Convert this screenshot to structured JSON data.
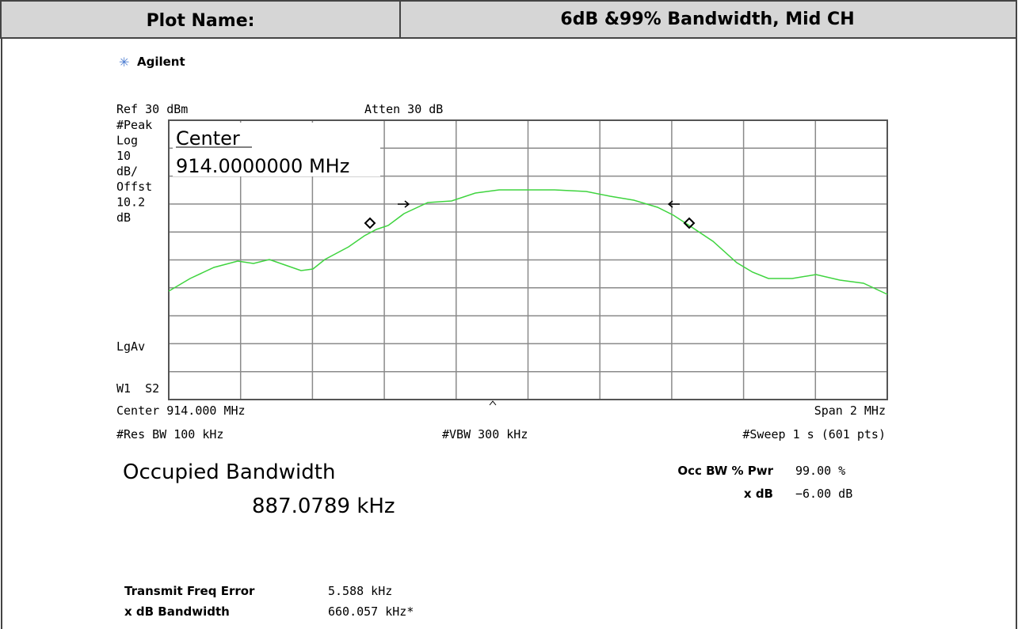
{
  "header": {
    "label": "Plot Name:",
    "value": "6dB &99% Bandwidth, Mid CH"
  },
  "plot": {
    "brand": "Agilent",
    "ref": "Ref 30 dBm",
    "atten": "Atten 30 dB",
    "left_labels": [
      "#Peak",
      "Log",
      "10",
      "dB/",
      "Offst",
      "10.2",
      "dB"
    ],
    "avg_label": "LgAv",
    "trace_label": "W1  S2",
    "marker_label": "Center",
    "marker_value": "914.0000000 MHz",
    "center": "Center 914.000 MHz",
    "span": "Span 2 MHz",
    "res_bw": "#Res BW 100 kHz",
    "vbw": "#VBW 300 kHz",
    "sweep": "#Sweep 1 s (601 pts)"
  },
  "results": {
    "title": "Occupied Bandwidth",
    "value": "887.0789 kHz",
    "pwr_label": "Occ BW % Pwr",
    "pwr_value": "99.00 %",
    "xdb_label": "x dB",
    "xdb_value": "−6.00 dB",
    "freq_err_label": "Transmit Freq Error",
    "freq_err_value": "5.588 kHz",
    "xdb_bw_label": "x dB Bandwidth",
    "xdb_bw_value": "660.057 kHz*"
  }
}
